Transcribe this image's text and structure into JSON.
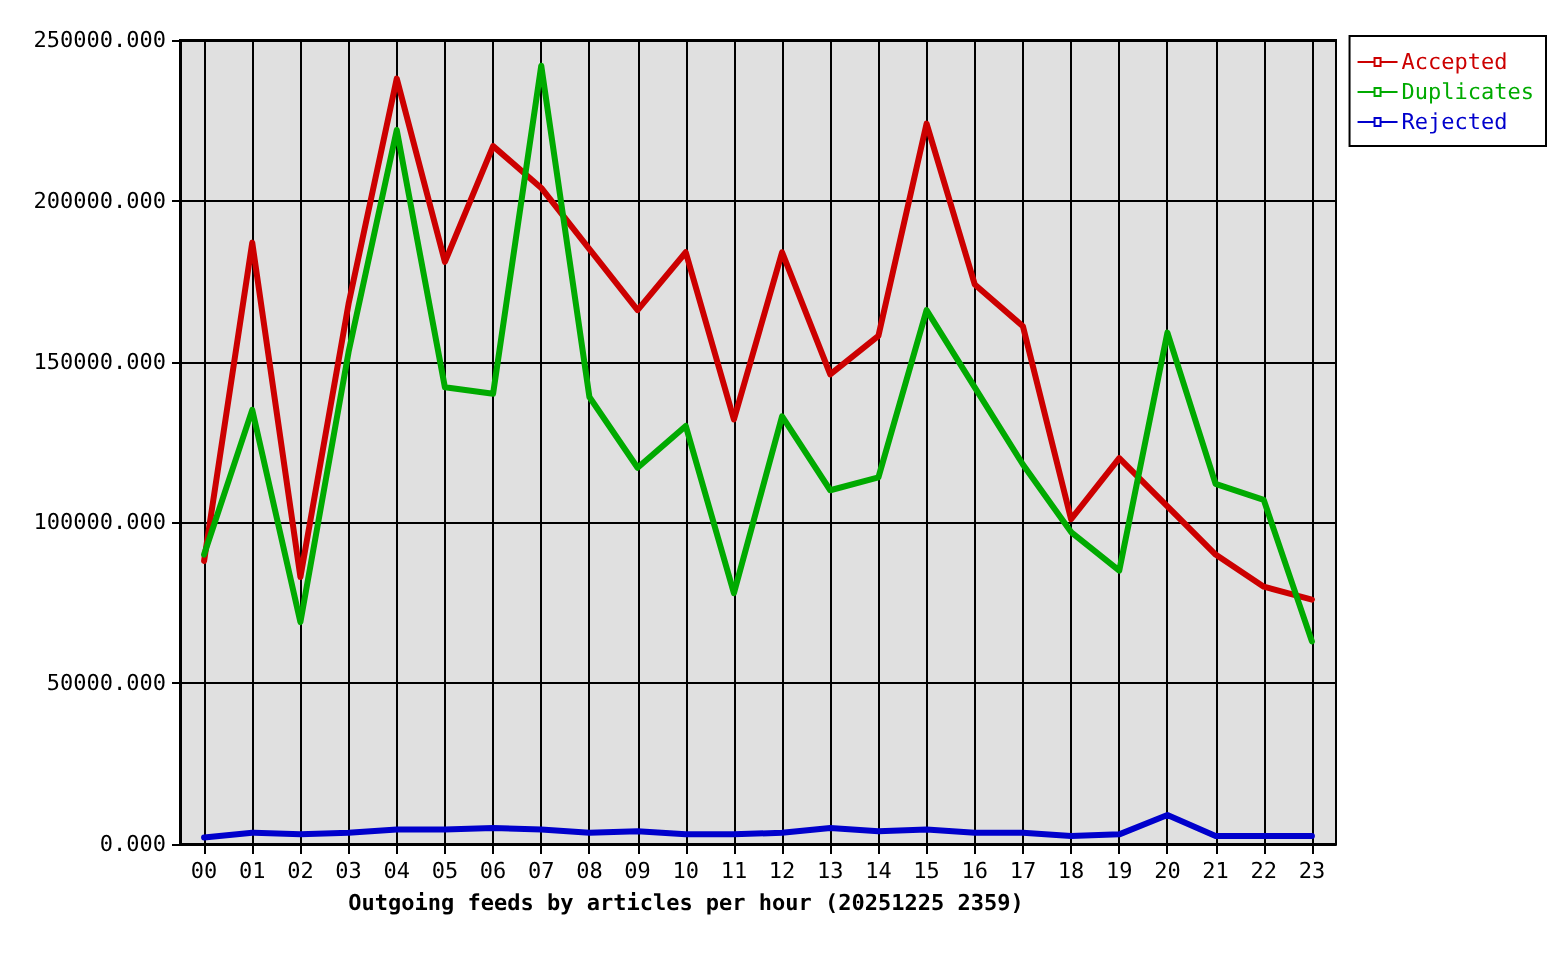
{
  "chart_data": {
    "type": "line",
    "xlabel": "Outgoing feeds by articles per hour (20251225 2359)",
    "categories": [
      "00",
      "01",
      "02",
      "03",
      "04",
      "05",
      "06",
      "07",
      "08",
      "09",
      "10",
      "11",
      "12",
      "13",
      "14",
      "15",
      "16",
      "17",
      "18",
      "19",
      "20",
      "21",
      "22",
      "23"
    ],
    "series": [
      {
        "name": "Accepted",
        "color": "#cc0000",
        "values": [
          88000,
          187000,
          83000,
          168000,
          238000,
          181000,
          217000,
          204000,
          185000,
          166000,
          184000,
          132000,
          184000,
          146000,
          158000,
          224000,
          174000,
          161000,
          101000,
          120000,
          105000,
          90000,
          80000,
          76000
        ]
      },
      {
        "name": "Duplicates",
        "color": "#00aa00",
        "values": [
          90000,
          135000,
          69000,
          153000,
          222000,
          142000,
          140000,
          242000,
          139000,
          117000,
          130000,
          78000,
          133000,
          110000,
          114000,
          166000,
          142000,
          118000,
          97000,
          85000,
          159000,
          112000,
          107000,
          63000
        ]
      },
      {
        "name": "Rejected",
        "color": "#0000cc",
        "values": [
          2000,
          3500,
          3000,
          3500,
          4500,
          4500,
          5000,
          4500,
          3500,
          4000,
          3000,
          3000,
          3500,
          5000,
          4000,
          4500,
          3500,
          3500,
          2500,
          3000,
          9000,
          2500,
          2500,
          2500
        ]
      }
    ],
    "ylim": [
      0,
      250000
    ],
    "yticks": [
      {
        "value": 0,
        "label": "0.000"
      },
      {
        "value": 50000,
        "label": "50000.000"
      },
      {
        "value": 100000,
        "label": "100000.000"
      },
      {
        "value": 150000,
        "label": "150000.000"
      },
      {
        "value": 200000,
        "label": "200000.000"
      },
      {
        "value": 250000,
        "label": "250000.000"
      }
    ],
    "grid": true,
    "legend": "top right",
    "marker": "none",
    "line_style": "solid"
  }
}
